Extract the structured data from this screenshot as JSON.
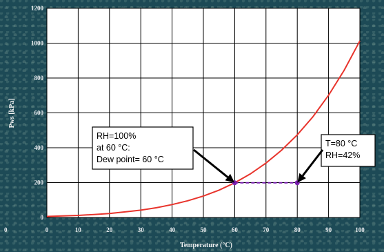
{
  "chart_data": {
    "type": "line",
    "xlabel": "Temperature (°C)",
    "ylabel": "Pws [kPa]",
    "xlim": [
      0,
      100
    ],
    "ylim": [
      0,
      1200
    ],
    "x_ticks": [
      0,
      10,
      20,
      30,
      40,
      50,
      60,
      70,
      80,
      90,
      100
    ],
    "y_ticks": [
      0,
      200,
      400,
      600,
      800,
      1000,
      1200
    ],
    "grid": true,
    "colors": {
      "curve": "#e8342c",
      "segment": "#7a1fb0",
      "plot_background": "#ffffff"
    },
    "series": [
      {
        "x": [
          0,
          5,
          10,
          15,
          20,
          25,
          30,
          35,
          40,
          45,
          50,
          55,
          60,
          65,
          70,
          75,
          80,
          85,
          90,
          95,
          100
        ],
        "y": [
          6,
          9,
          12,
          17,
          23,
          32,
          42,
          56,
          74,
          96,
          123,
          157,
          199,
          250,
          312,
          386,
          474,
          578,
          701,
          845,
          1013
        ]
      }
    ],
    "points": [
      {
        "x": 60,
        "y": 199
      },
      {
        "x": 80,
        "y": 199
      }
    ],
    "annotations": [
      {
        "lines": [
          "RH=100%",
          "at 60 °C:",
          "Dew point= 60 °C"
        ],
        "arrow_to": {
          "x": 60,
          "y": 199
        }
      },
      {
        "lines": [
          "T=80 °C",
          "RH=42%"
        ],
        "arrow_to": {
          "x": 80,
          "y": 199
        }
      }
    ]
  }
}
